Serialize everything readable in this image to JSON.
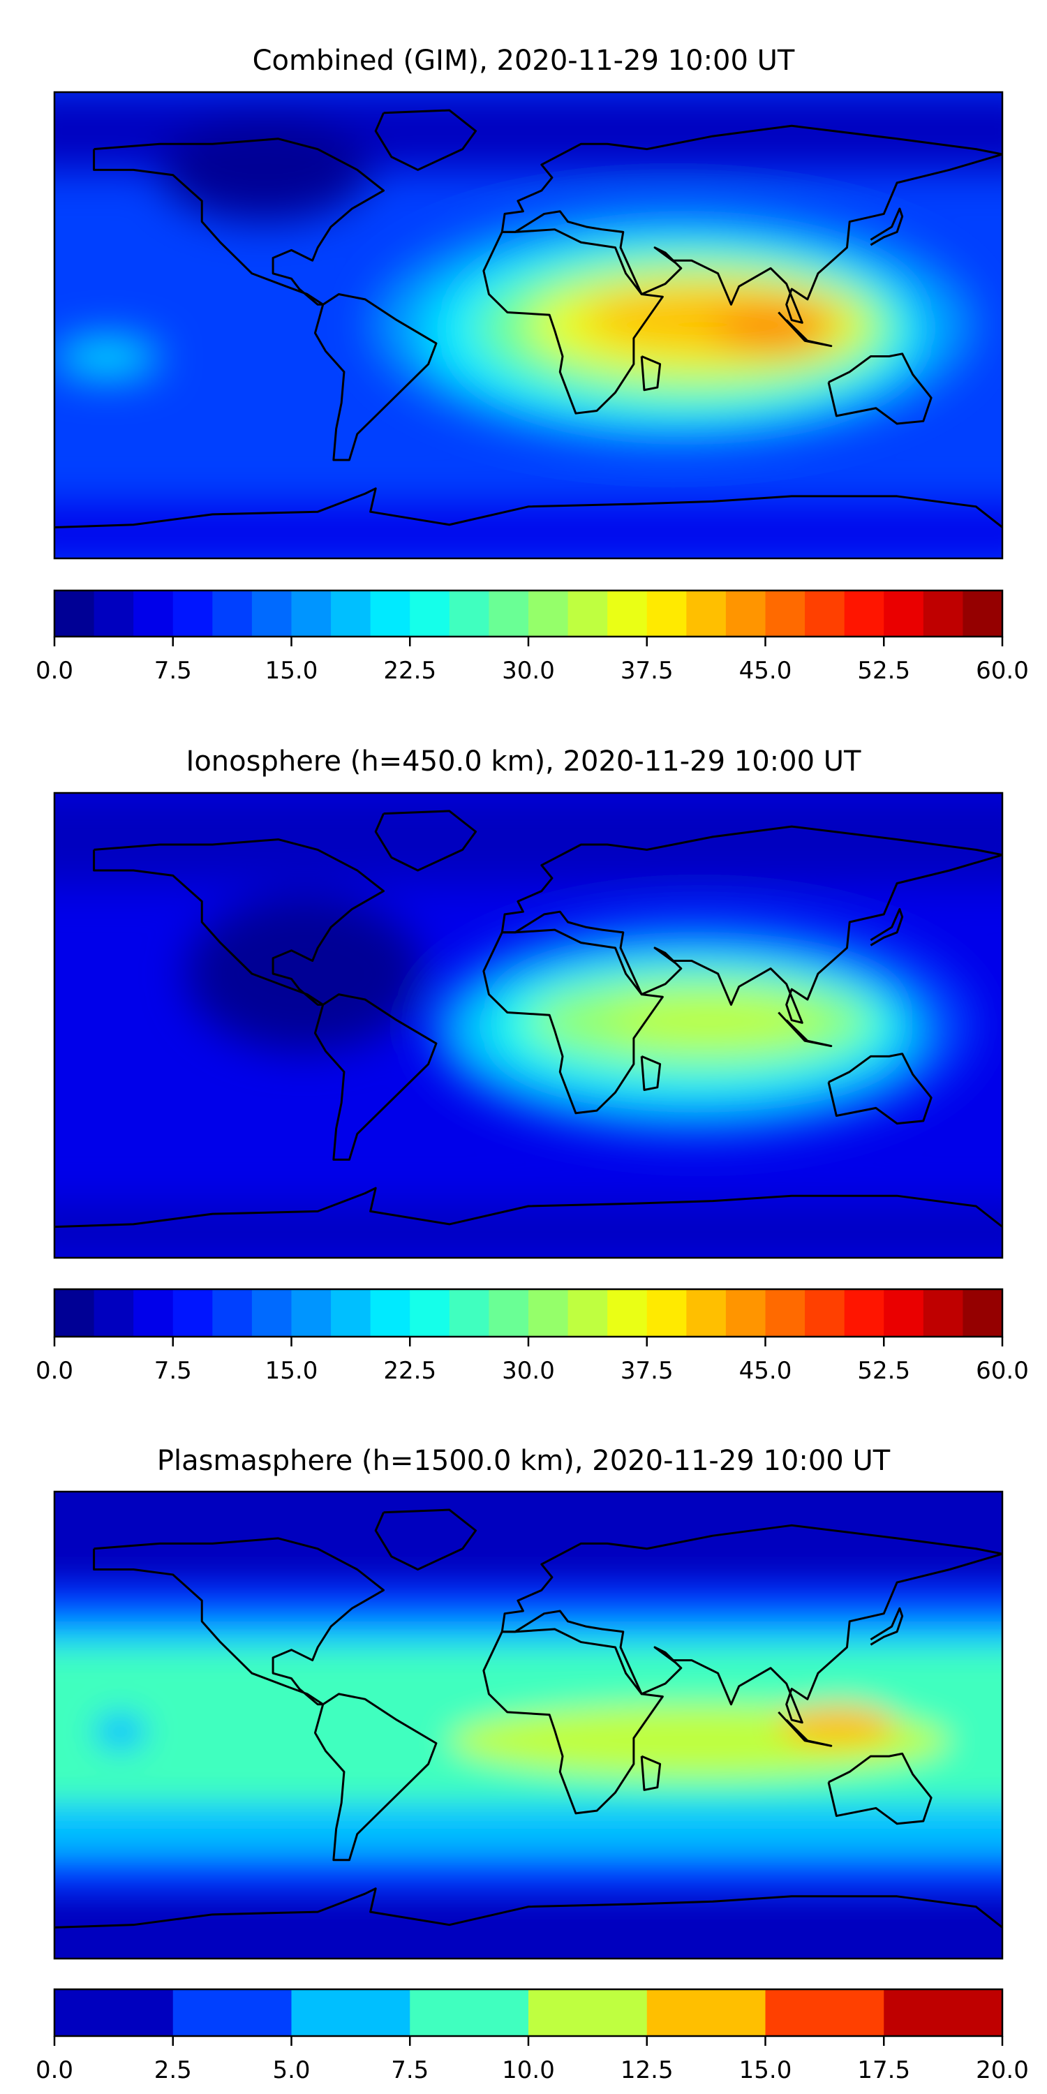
{
  "chart_data": [
    {
      "type": "heatmap",
      "title": "Combined (GIM), 2020-11-29 10:00 UT",
      "colormap": "jet",
      "levels": {
        "min": 0,
        "max": 60,
        "step": 2.5
      },
      "colorbar_ticks": [
        "0.0",
        "7.5",
        "15.0",
        "22.5",
        "30.0",
        "37.5",
        "45.0",
        "52.5",
        "60.0"
      ],
      "tick_values": [
        0,
        7.5,
        15,
        22.5,
        30,
        37.5,
        45,
        52.5,
        60
      ],
      "base_value": 10,
      "regions": [
        {
          "lon": [
            -180,
            180
          ],
          "lat": [
            60,
            90
          ],
          "value": 4
        },
        {
          "lon": [
            -180,
            180
          ],
          "lat": [
            -90,
            -70
          ],
          "value": 6
        },
        {
          "lon": [
            -140,
            -60
          ],
          "lat": [
            40,
            80
          ],
          "value": 2
        },
        {
          "lon": [
            -60,
            170
          ],
          "lat": [
            -45,
            45
          ],
          "value": 16
        },
        {
          "lon": [
            -40,
            150
          ],
          "lat": [
            -40,
            35
          ],
          "value": 22
        },
        {
          "lon": [
            -20,
            140
          ],
          "lat": [
            -30,
            28
          ],
          "value": 28
        },
        {
          "lon": [
            0,
            130
          ],
          "lat": [
            -20,
            20
          ],
          "value": 35
        },
        {
          "lon": [
            20,
            120
          ],
          "lat": [
            -10,
            15
          ],
          "value": 40
        },
        {
          "lon": [
            70,
            115
          ],
          "lat": [
            -10,
            5
          ],
          "value": 46
        },
        {
          "lon": [
            -180,
            -140
          ],
          "lat": [
            -20,
            -5
          ],
          "value": 20
        }
      ]
    },
    {
      "type": "heatmap",
      "title": "Ionosphere  (h=450.0 km), 2020-11-29 10:00 UT",
      "colormap": "jet",
      "levels": {
        "min": 0,
        "max": 60,
        "step": 2.5
      },
      "colorbar_ticks": [
        "0.0",
        "7.5",
        "15.0",
        "22.5",
        "30.0",
        "37.5",
        "45.0",
        "52.5",
        "60.0"
      ],
      "tick_values": [
        0,
        7.5,
        15,
        22.5,
        30,
        37.5,
        45,
        52.5,
        60
      ],
      "base_value": 7,
      "regions": [
        {
          "lon": [
            -180,
            180
          ],
          "lat": [
            55,
            90
          ],
          "value": 3
        },
        {
          "lon": [
            -180,
            180
          ],
          "lat": [
            -90,
            -70
          ],
          "value": 4
        },
        {
          "lon": [
            -130,
            -40
          ],
          "lat": [
            -10,
            50
          ],
          "value": 2
        },
        {
          "lon": [
            -40,
            170
          ],
          "lat": [
            -45,
            45
          ],
          "value": 12
        },
        {
          "lon": [
            -30,
            150
          ],
          "lat": [
            -35,
            30
          ],
          "value": 18
        },
        {
          "lon": [
            -15,
            140
          ],
          "lat": [
            -25,
            25
          ],
          "value": 24
        },
        {
          "lon": [
            0,
            130
          ],
          "lat": [
            -15,
            18
          ],
          "value": 30
        },
        {
          "lon": [
            30,
            110
          ],
          "lat": [
            -8,
            12
          ],
          "value": 34
        }
      ]
    },
    {
      "type": "heatmap",
      "title": "Plasmasphere (h=1500.0 km), 2020-11-29 10:00 UT",
      "colormap": "jet",
      "levels": {
        "min": 0,
        "max": 20,
        "step": 2.5
      },
      "colorbar_ticks": [
        "0.0",
        "2.5",
        "5.0",
        "7.5",
        "10.0",
        "12.5",
        "15.0",
        "17.5",
        "20.0"
      ],
      "tick_values": [
        0,
        2.5,
        5,
        7.5,
        10,
        12.5,
        15,
        17.5,
        20
      ],
      "base_value": 1,
      "regions": [
        {
          "lon": [
            -180,
            180
          ],
          "lat": [
            -65,
            55
          ],
          "value": 4
        },
        {
          "lon": [
            -180,
            180
          ],
          "lat": [
            -50,
            40
          ],
          "value": 6
        },
        {
          "lon": [
            -180,
            180
          ],
          "lat": [
            -30,
            30
          ],
          "value": 9
        },
        {
          "lon": [
            -165,
            -145
          ],
          "lat": [
            -10,
            5
          ],
          "value": 6
        },
        {
          "lon": [
            -30,
            160
          ],
          "lat": [
            -20,
            8
          ],
          "value": 11
        },
        {
          "lon": [
            95,
            140
          ],
          "lat": [
            -8,
            8
          ],
          "value": 13.5
        }
      ]
    }
  ]
}
